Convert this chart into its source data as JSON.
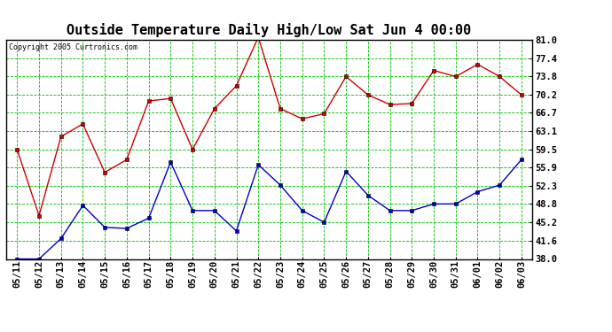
{
  "title": "Outside Temperature Daily High/Low Sat Jun 4 00:00",
  "copyright": "Copyright 2005 Curtronics.com",
  "x_labels": [
    "05/11",
    "05/12",
    "05/13",
    "05/14",
    "05/15",
    "05/16",
    "05/17",
    "05/18",
    "05/19",
    "05/20",
    "05/21",
    "05/22",
    "05/23",
    "05/24",
    "05/25",
    "05/26",
    "05/27",
    "05/28",
    "05/29",
    "05/30",
    "05/31",
    "06/01",
    "06/02",
    "06/03"
  ],
  "high_values": [
    59.5,
    46.5,
    62.0,
    64.5,
    55.0,
    57.5,
    69.0,
    69.5,
    59.5,
    67.5,
    72.0,
    81.5,
    67.5,
    65.5,
    66.5,
    73.8,
    70.2,
    68.3,
    68.5,
    75.0,
    73.8,
    76.2,
    73.8,
    70.2
  ],
  "low_values": [
    38.0,
    38.0,
    42.0,
    48.5,
    44.2,
    44.0,
    46.0,
    57.0,
    47.5,
    47.5,
    43.5,
    56.5,
    52.5,
    47.5,
    45.2,
    55.2,
    50.5,
    47.5,
    47.5,
    48.8,
    48.8,
    51.2,
    52.5,
    57.5
  ],
  "high_color": "#cc0000",
  "low_color": "#0000cc",
  "bg_color": "#ffffff",
  "plot_bg_color": "#ffffff",
  "grid_color": "#00bb00",
  "yticks": [
    38.0,
    41.6,
    45.2,
    48.8,
    52.3,
    55.9,
    59.5,
    63.1,
    66.7,
    70.2,
    73.8,
    77.4,
    81.0
  ],
  "ymin": 38.0,
  "ymax": 81.0,
  "title_fontsize": 11,
  "tick_fontsize": 7.5
}
